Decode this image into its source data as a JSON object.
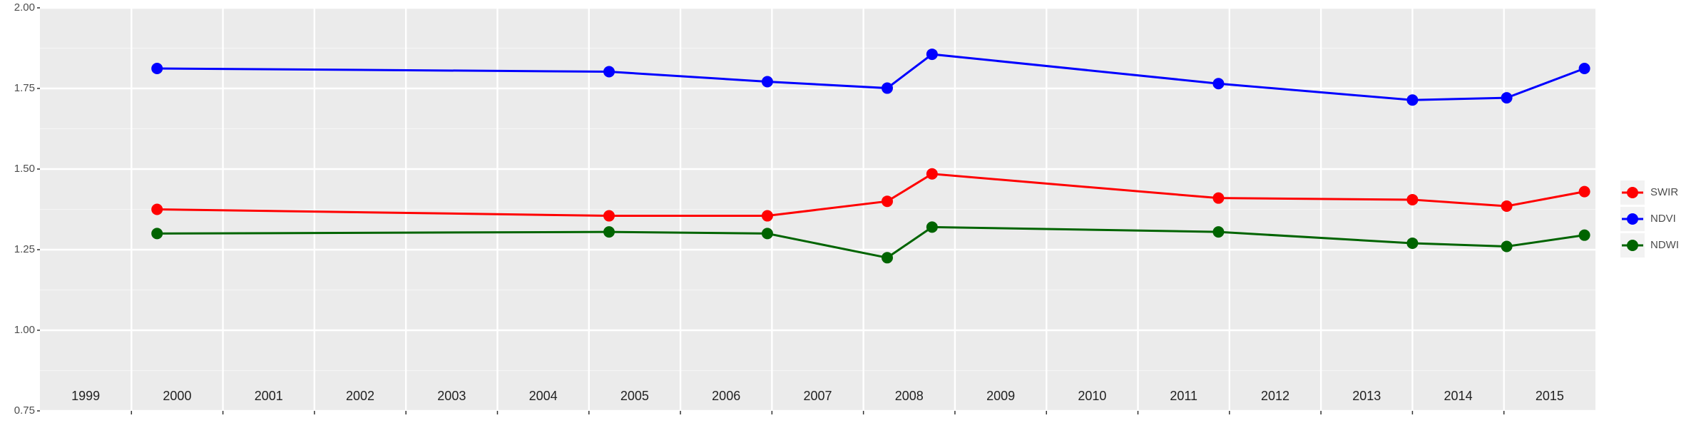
{
  "chart_data": {
    "type": "line",
    "x": [
      2000.28,
      2005.22,
      2006.95,
      2008.26,
      2008.75,
      2011.88,
      2014.0,
      2015.03,
      2015.88
    ],
    "series": [
      {
        "name": "SWIR",
        "color": "#ff0000",
        "values": [
          1.375,
          1.355,
          1.355,
          1.4,
          1.485,
          1.41,
          1.405,
          1.385,
          1.43
        ]
      },
      {
        "name": "NDVI",
        "color": "#0000ff",
        "values": [
          1.812,
          1.802,
          1.771,
          1.751,
          1.856,
          1.765,
          1.714,
          1.721,
          1.812
        ]
      },
      {
        "name": "NDWI",
        "color": "#006400",
        "values": [
          1.3,
          1.305,
          1.3,
          1.225,
          1.32,
          1.305,
          1.27,
          1.26,
          1.295
        ]
      }
    ],
    "xlim": [
      1999,
      2016
    ],
    "xticks": [
      2000,
      2001,
      2002,
      2003,
      2004,
      2005,
      2006,
      2007,
      2008,
      2009,
      2010,
      2011,
      2012,
      2013,
      2014,
      2015
    ],
    "year_labels": [
      "1999",
      "2000",
      "2001",
      "2002",
      "2003",
      "2004",
      "2005",
      "2006",
      "2007",
      "2008",
      "2009",
      "2010",
      "2011",
      "2012",
      "2013",
      "2014",
      "2015"
    ],
    "ylim": [
      0.75,
      2.0
    ],
    "yticks": [
      {
        "value": 0.75,
        "label": "0.75"
      },
      {
        "value": 1.0,
        "label": "1.00"
      },
      {
        "value": 1.25,
        "label": "1.25"
      },
      {
        "value": 1.5,
        "label": "1.50"
      },
      {
        "value": 1.75,
        "label": "1.75"
      },
      {
        "value": 2.0,
        "label": "2.00"
      }
    ],
    "grid": true,
    "legend": "right"
  }
}
